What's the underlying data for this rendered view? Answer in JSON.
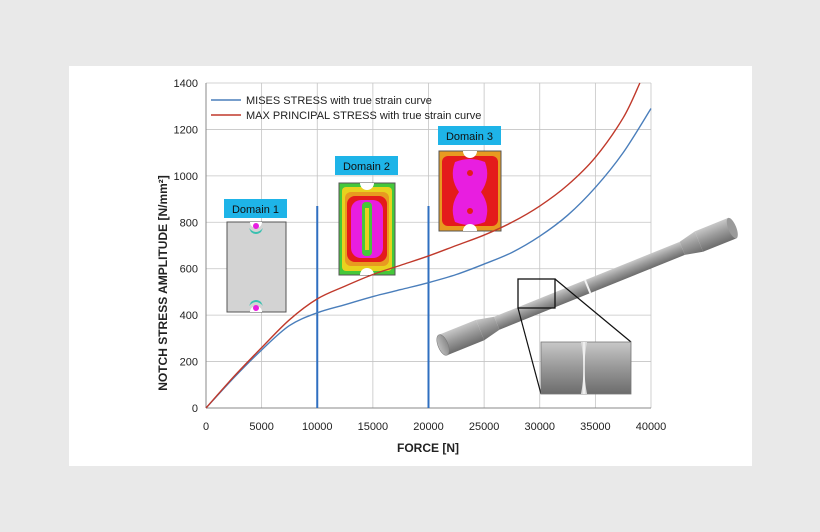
{
  "chart_data": {
    "type": "line",
    "title": "",
    "xlabel": "FORCE [N]",
    "ylabel": "NOTCH STRESS AMPLITUDE [N/mm²]",
    "xlim": [
      0,
      40000
    ],
    "ylim": [
      0,
      1400
    ],
    "xticks": [
      0,
      5000,
      10000,
      15000,
      20000,
      25000,
      30000,
      35000,
      40000
    ],
    "yticks": [
      0,
      200,
      400,
      600,
      800,
      1000,
      1200,
      1400
    ],
    "grid": true,
    "legend_position": "top-left",
    "series": [
      {
        "name": "MISES STRESS with true strain curve",
        "color": "#4a7ebb",
        "x": [
          0,
          2500,
          5000,
          7500,
          10000,
          12500,
          15000,
          17500,
          20000,
          22500,
          25000,
          27500,
          30000,
          32500,
          35000,
          37500,
          40000
        ],
        "y": [
          0,
          130,
          250,
          355,
          410,
          445,
          480,
          510,
          540,
          575,
          620,
          670,
          740,
          830,
          950,
          1100,
          1290
        ]
      },
      {
        "name": "MAX PRINCIPAL STRESS with true strain curve",
        "color": "#c0392b",
        "x": [
          0,
          2500,
          5000,
          7500,
          10000,
          12500,
          15000,
          17500,
          20000,
          22500,
          25000,
          27500,
          30000,
          32500,
          35000,
          37500,
          39000
        ],
        "y": [
          0,
          135,
          260,
          380,
          470,
          525,
          575,
          615,
          655,
          700,
          745,
          800,
          870,
          960,
          1080,
          1250,
          1400
        ]
      }
    ],
    "vertical_markers": [
      {
        "x": 10000,
        "y_top": 870,
        "color": "#2f6fc0"
      },
      {
        "x": 20000,
        "y_top": 870,
        "color": "#2f6fc0"
      }
    ],
    "annotations": [
      {
        "text": "Domain 1",
        "x": 5000,
        "y": 855
      },
      {
        "text": "Domain 2",
        "x": 14500,
        "y": 1045
      },
      {
        "text": "Domain 3",
        "x": 23500,
        "y": 1170
      }
    ]
  },
  "colors": {
    "label_box": "#1eb4e8",
    "specimen": "#9a9a9a",
    "fea_red": "#e41b1b",
    "fea_magenta": "#e81ee0",
    "fea_orange": "#e89a20",
    "fea_yellow": "#e8d21e",
    "fea_green": "#45c83a"
  }
}
